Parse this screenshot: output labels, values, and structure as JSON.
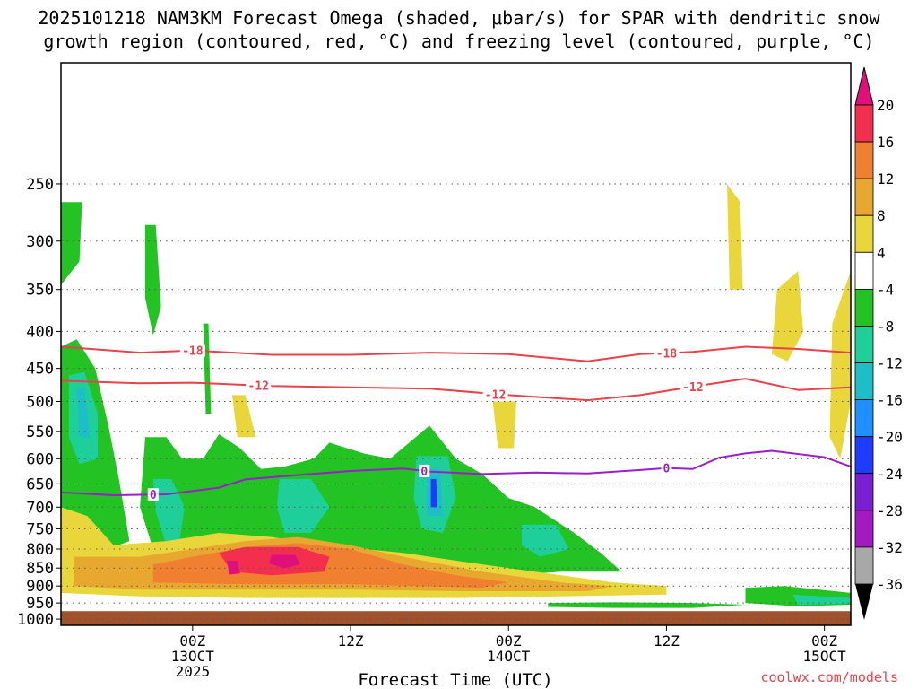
{
  "chart_data": {
    "type": "heatmap",
    "title_line1": "2025101218 NAM3KM Forecast Omega (shaded, μbar/s) for SPAR with dendritic snow",
    "title_line2": "growth region (contoured, red, °C) and freezing level (contoured, purple, °C)",
    "xlabel": "Forecast Time (UTC)",
    "credit": "coolwx.com/models",
    "x_range_hours": [
      -5,
      25
    ],
    "y_axis_hpa": [
      250,
      300,
      350,
      400,
      450,
      500,
      550,
      600,
      650,
      700,
      750,
      800,
      850,
      900,
      950,
      1000
    ],
    "y_range_hpa": [
      170,
      1020
    ],
    "ground_hpa": 975,
    "x_ticks": [
      {
        "h": 0,
        "label": "00Z",
        "sub1": "13OCT",
        "sub2": "2025"
      },
      {
        "h": 6,
        "label": "12Z",
        "sub1": "",
        "sub2": ""
      },
      {
        "h": 12,
        "label": "00Z",
        "sub1": "14OCT",
        "sub2": ""
      },
      {
        "h": 18,
        "label": "12Z",
        "sub1": "",
        "sub2": ""
      },
      {
        "h": 24,
        "label": "00Z",
        "sub1": "15OCT",
        "sub2": ""
      }
    ],
    "colorbar": {
      "labels": [
        "20",
        "16",
        "12",
        "8",
        "4",
        "-4",
        "-8",
        "-12",
        "-16",
        "-20",
        "-24",
        "-28",
        "-32",
        "-36"
      ],
      "colors": [
        "#f42f4e",
        "#f08030",
        "#e8a830",
        "#e8d63a",
        "#ffffff",
        "#22c322",
        "#1fcf9a",
        "#1ebec8",
        "#1e90ff",
        "#1e3cff",
        "#7a1fd2",
        "#a41ac2",
        "#a8a8a8"
      ],
      "top_color": "#e0107a",
      "bottom_color": "#000000"
    },
    "contours": [
      {
        "name": "dgz-minus18",
        "label": "-18",
        "color": "#e8424a",
        "label_h": [
          0,
          18
        ],
        "points": [
          [
            -5,
            420
          ],
          [
            -2,
            428
          ],
          [
            0,
            425
          ],
          [
            3,
            431
          ],
          [
            6,
            431
          ],
          [
            9,
            428
          ],
          [
            12,
            430
          ],
          [
            15,
            440
          ],
          [
            17,
            430
          ],
          [
            19,
            427
          ],
          [
            21,
            420
          ],
          [
            23,
            423
          ],
          [
            25,
            428
          ]
        ]
      },
      {
        "name": "dgz-minus12",
        "label": "-12",
        "color": "#e8424a",
        "label_h": [
          2.5,
          11.5,
          19
        ],
        "points": [
          [
            -5,
            468
          ],
          [
            -2,
            472
          ],
          [
            0,
            471
          ],
          [
            3,
            476
          ],
          [
            6,
            478
          ],
          [
            9,
            480
          ],
          [
            12,
            490
          ],
          [
            15,
            498
          ],
          [
            17,
            490
          ],
          [
            19,
            477
          ],
          [
            21,
            465
          ],
          [
            23,
            482
          ],
          [
            25,
            478
          ]
        ]
      },
      {
        "name": "freezing-level",
        "label": "0",
        "color": "#9b1fc8",
        "label_h": [
          -1.5,
          8.8,
          18
        ],
        "points": [
          [
            -5,
            668
          ],
          [
            -3,
            674
          ],
          [
            -1,
            672
          ],
          [
            1,
            658
          ],
          [
            2,
            641
          ],
          [
            4,
            632
          ],
          [
            6,
            624
          ],
          [
            8,
            619
          ],
          [
            9,
            625
          ],
          [
            11,
            630
          ],
          [
            13,
            627
          ],
          [
            15,
            629
          ],
          [
            17,
            622
          ],
          [
            18,
            618
          ],
          [
            19,
            620
          ],
          [
            20,
            598
          ],
          [
            21,
            590
          ],
          [
            22,
            585
          ],
          [
            24,
            597
          ],
          [
            25,
            615
          ]
        ]
      }
    ]
  }
}
